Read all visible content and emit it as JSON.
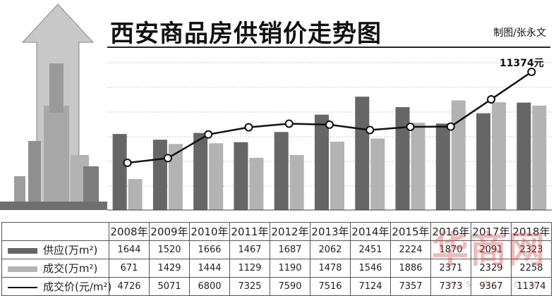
{
  "header": {
    "title": "西安商品房供销价走势图",
    "credit": "制图/张永文"
  },
  "endpoint_label": "11374元",
  "watermark": {
    "text": "华商网",
    "url": "H S W . C N"
  },
  "colors": {
    "supply": "#666666",
    "transaction": "#b3b3b3",
    "price_line": "#111111"
  },
  "table": {
    "years": [
      "2008年",
      "2009年",
      "2010年",
      "2011年",
      "2012年",
      "2013年",
      "2014年",
      "2015年",
      "2016年",
      "2017年",
      "2018年"
    ],
    "rows": [
      {
        "label": "供应(万m²)",
        "swatch": "supply",
        "values": [
          "1644",
          "1520",
          "1666",
          "1467",
          "1687",
          "2062",
          "2451",
          "2224",
          "1870",
          "2091",
          "2323"
        ]
      },
      {
        "label": "成交(万m²)",
        "swatch": "transaction",
        "values": [
          "671",
          "1429",
          "1444",
          "1129",
          "1190",
          "1478",
          "1546",
          "1886",
          "2371",
          "2329",
          "2258"
        ]
      },
      {
        "label": "成交价(元/m²)",
        "swatch": "line",
        "values": [
          "4726",
          "5071",
          "6800",
          "7325",
          "7590",
          "7516",
          "7124",
          "7357",
          "7373",
          "9367",
          "11374"
        ]
      }
    ]
  },
  "chart_data": {
    "type": "bar",
    "title": "西安商品房供销价走势图",
    "categories": [
      "2008年",
      "2009年",
      "2010年",
      "2011年",
      "2012年",
      "2013年",
      "2014年",
      "2015年",
      "2016年",
      "2017年",
      "2018年"
    ],
    "series": [
      {
        "name": "供应(万m²)",
        "type": "bar",
        "values": [
          1644,
          1520,
          1666,
          1467,
          1687,
          2062,
          2451,
          2224,
          1870,
          2091,
          2323
        ]
      },
      {
        "name": "成交(万m²)",
        "type": "bar",
        "values": [
          671,
          1429,
          1444,
          1129,
          1190,
          1478,
          1546,
          1886,
          2371,
          2329,
          2258
        ]
      },
      {
        "name": "成交价(元/m²)",
        "type": "line",
        "values": [
          4726,
          5071,
          6800,
          7325,
          7590,
          7516,
          7124,
          7357,
          7373,
          9367,
          11374
        ]
      }
    ],
    "bar_ylim": [
      0,
      3200
    ],
    "line_ylim": [
      2000,
      12300
    ],
    "grid": true,
    "legend_placement": "table rows below chart"
  }
}
